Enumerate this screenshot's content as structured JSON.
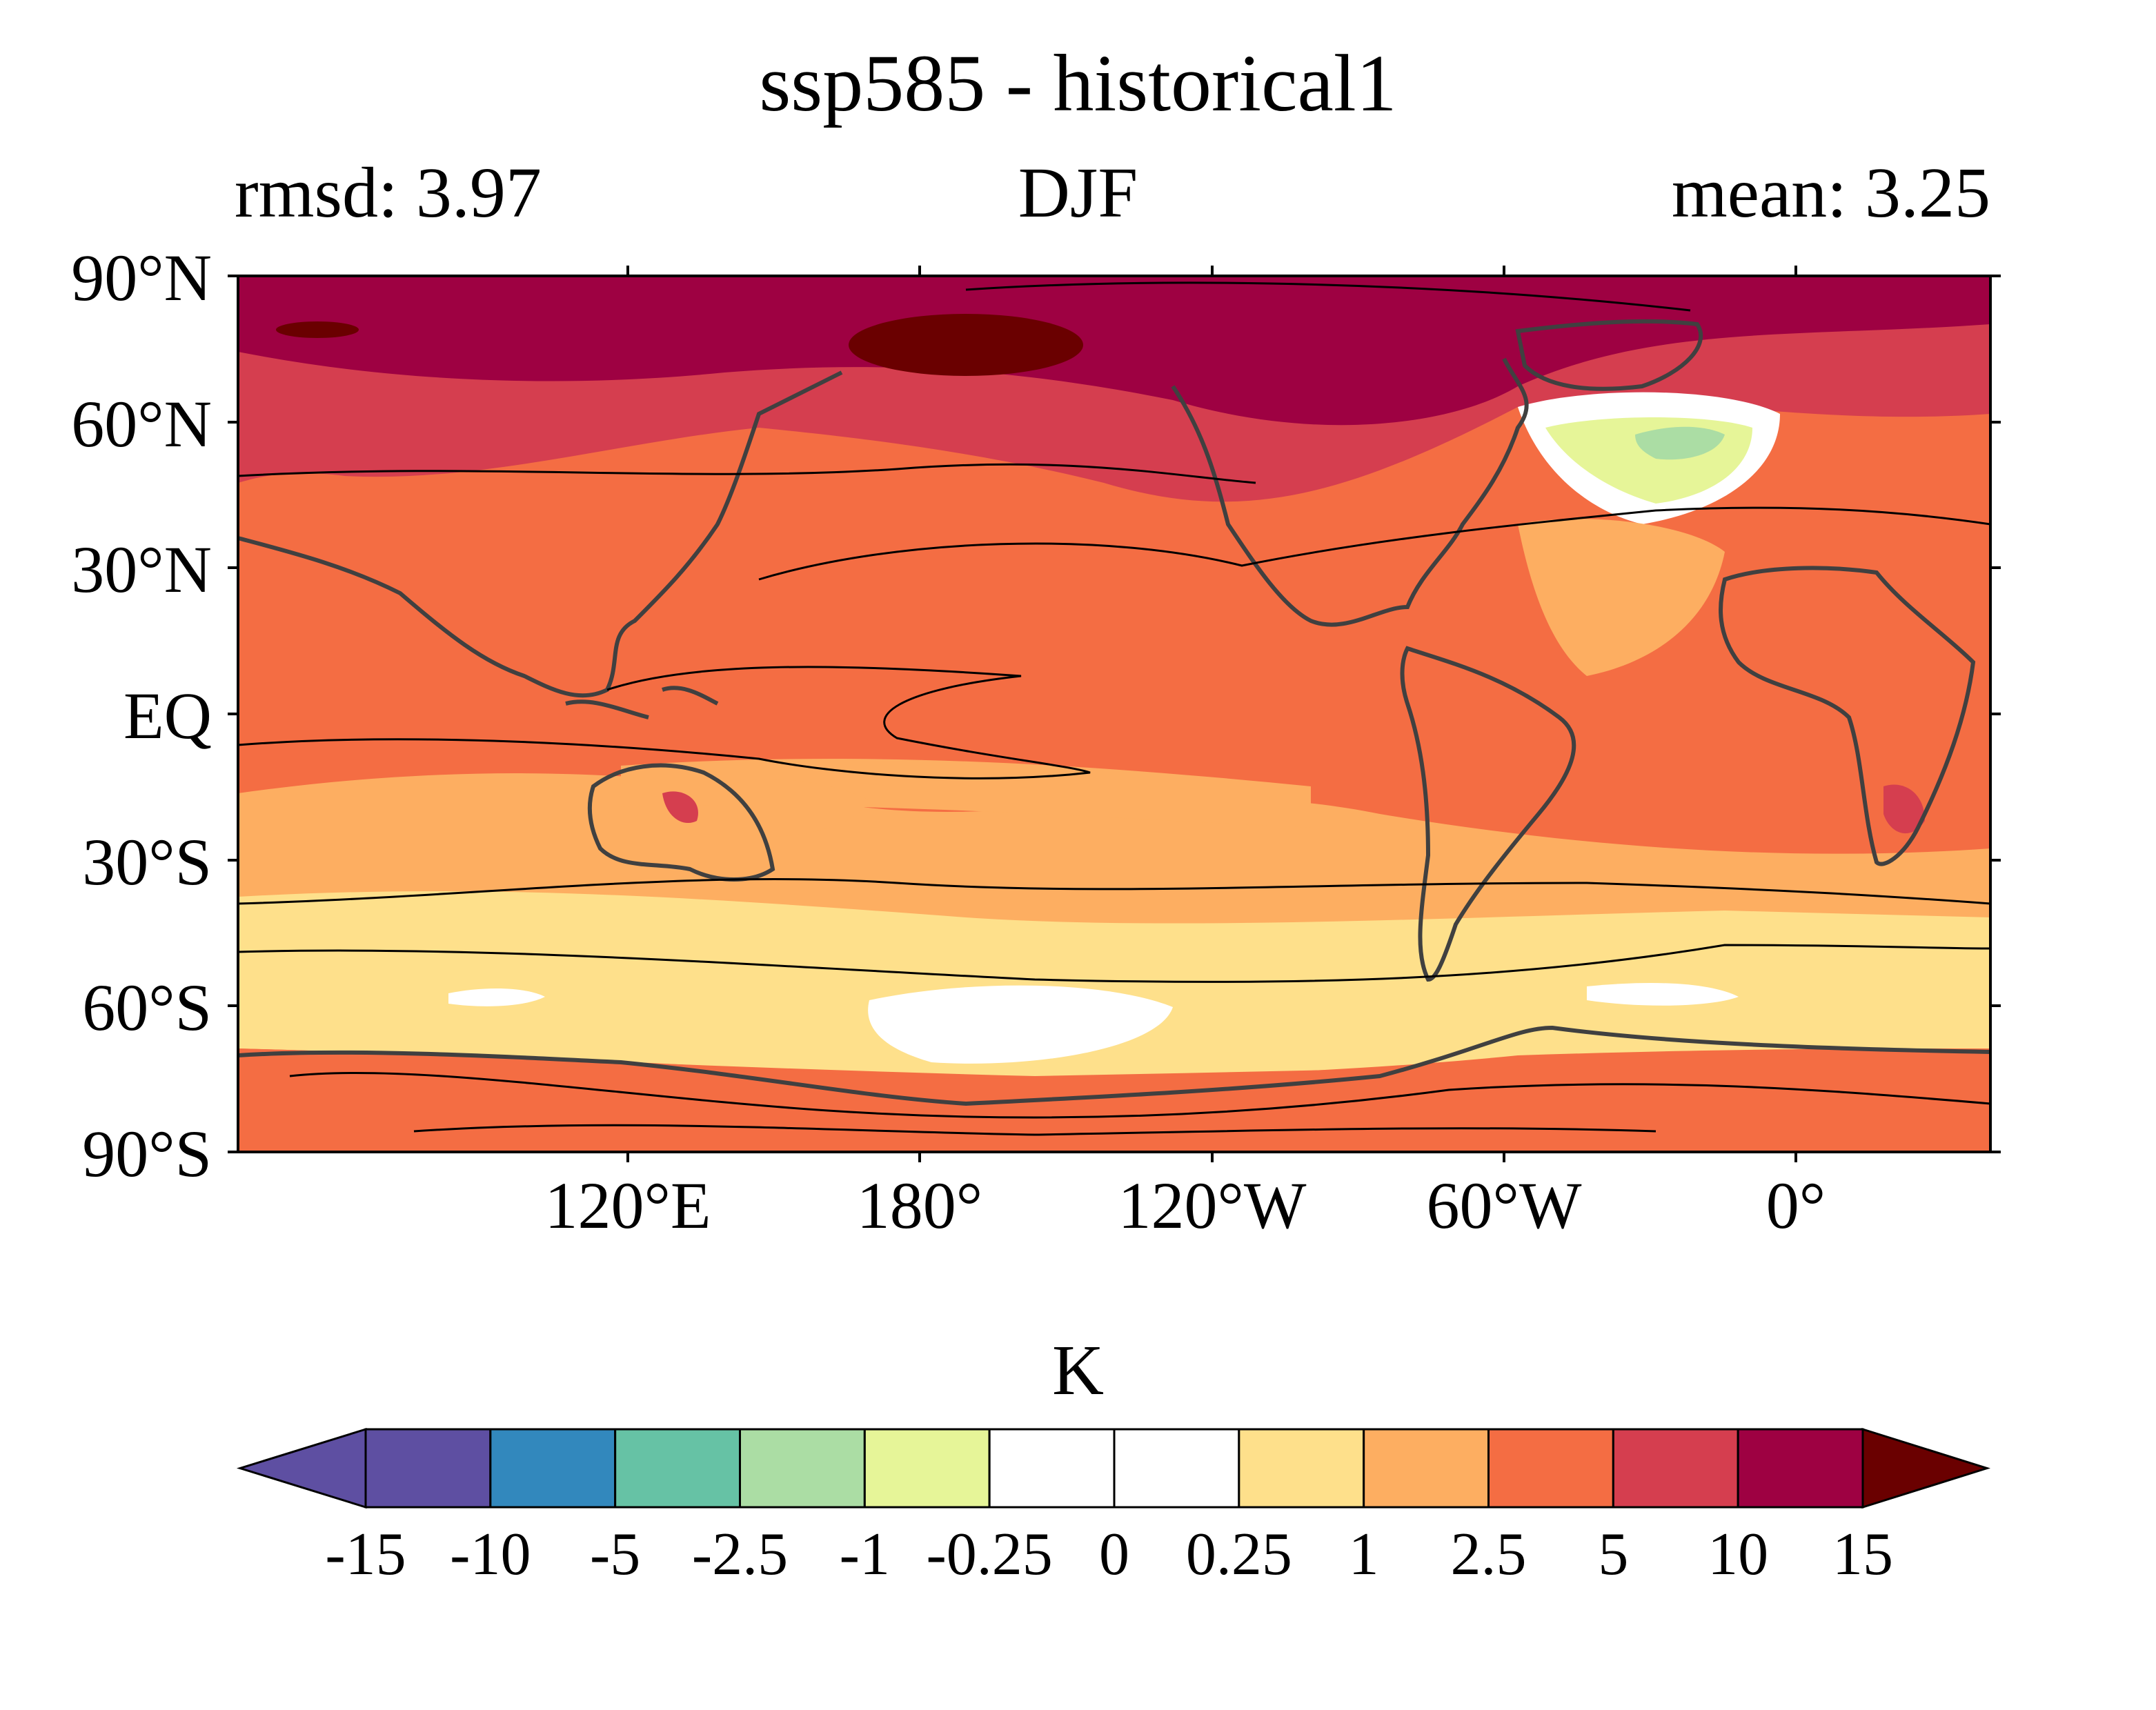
{
  "title": "ssp585 - historical1",
  "subtitle_left": "rmsd: 3.97",
  "subtitle_center": "DJF",
  "subtitle_right": "mean: 3.25",
  "map": {
    "projection": "equirectangular",
    "central_longitude": "150°E",
    "lat_ticks": [
      "90°N",
      "60°N",
      "30°N",
      "EQ",
      "30°S",
      "60°S",
      "90°S"
    ],
    "lon_ticks": [
      "120°E",
      "180°",
      "120°W",
      "60°W",
      "0°"
    ],
    "contour_lines": "black climatology contours",
    "coastlines": "dark gray"
  },
  "colorbar": {
    "units": "K",
    "extend": "both",
    "boundaries": [
      "-15",
      "-10",
      "-5",
      "-2.5",
      "-1",
      "-0.25",
      "0",
      "0.25",
      "1",
      "2.5",
      "5",
      "10",
      "15"
    ],
    "colors": [
      "#5e4fa2",
      "#5e4fa2",
      "#3288bd",
      "#66c2a5",
      "#abdda4",
      "#e6f598",
      "#ffffff",
      "#ffffff",
      "#fee08b",
      "#fdae61",
      "#f46d43",
      "#d53e4f",
      "#9e0142",
      "#6a0000"
    ]
  },
  "palette": {
    "arctic_extreme": "#6a0000",
    "high_lat": "#9e0142",
    "mid_high": "#d53e4f",
    "tropics": "#f46d43",
    "moderate": "#fdae61",
    "weak": "#fee08b",
    "near_zero": "#ffffff",
    "cool_slight": "#e6f598",
    "cool": "#abdda4"
  }
}
